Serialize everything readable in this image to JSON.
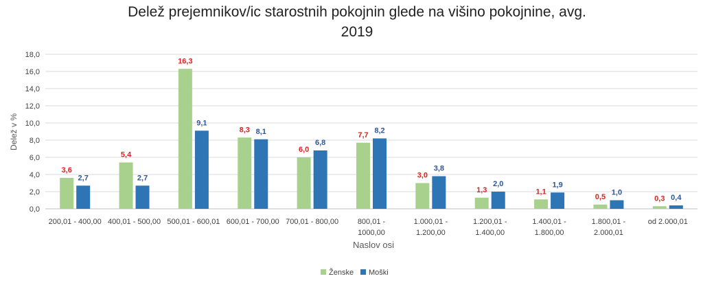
{
  "chart_data": {
    "type": "bar",
    "title_line1": "Delež prejemnikov/ic starostnih pokojnin glede na višino pokojnine, avg.",
    "title_line2": "2019",
    "xlabel": "Naslov osi",
    "ylabel": "Delež v %",
    "ylim": [
      0,
      18
    ],
    "yticks": [
      "0,0",
      "2,0",
      "4,0",
      "6,0",
      "8,0",
      "10,0",
      "12,0",
      "14,0",
      "16,0",
      "18,0"
    ],
    "grid": true,
    "legend_position": "bottom",
    "categories": [
      [
        "200,01 - 400,00"
      ],
      [
        "400,01 - 500,00"
      ],
      [
        "500,01 - 600,01"
      ],
      [
        "600,01 - 700,00"
      ],
      [
        "700,01 - 800,00"
      ],
      [
        "800,01 -",
        "1000,00"
      ],
      [
        "1.000,01 -",
        "1.200,00"
      ],
      [
        "1.200,01 -",
        "1.400,00"
      ],
      [
        "1.400,01 -",
        "1.800,00"
      ],
      [
        "1.800,01 -",
        "2.000,01"
      ],
      [
        "od 2.000,01"
      ]
    ],
    "series": [
      {
        "name": "Ženske",
        "color": "#a9d18e",
        "label_color": "#e02020",
        "values": [
          3.6,
          5.4,
          16.3,
          8.3,
          6.0,
          7.7,
          3.0,
          1.3,
          1.1,
          0.5,
          0.3
        ],
        "labels": [
          "3,6",
          "5,4",
          "16,3",
          "8,3",
          "6,0",
          "7,7",
          "3,0",
          "1,3",
          "1,1",
          "0,5",
          "0,3"
        ]
      },
      {
        "name": "Moški",
        "color": "#2e75b6",
        "label_color": "#2e5597",
        "values": [
          2.7,
          2.7,
          9.1,
          8.1,
          6.8,
          8.2,
          3.8,
          2.0,
          1.9,
          1.0,
          0.4
        ],
        "labels": [
          "2,7",
          "2,7",
          "9,1",
          "8,1",
          "6,8",
          "8,2",
          "3,8",
          "2,0",
          "1,9",
          "1,0",
          "0,4"
        ]
      }
    ]
  }
}
